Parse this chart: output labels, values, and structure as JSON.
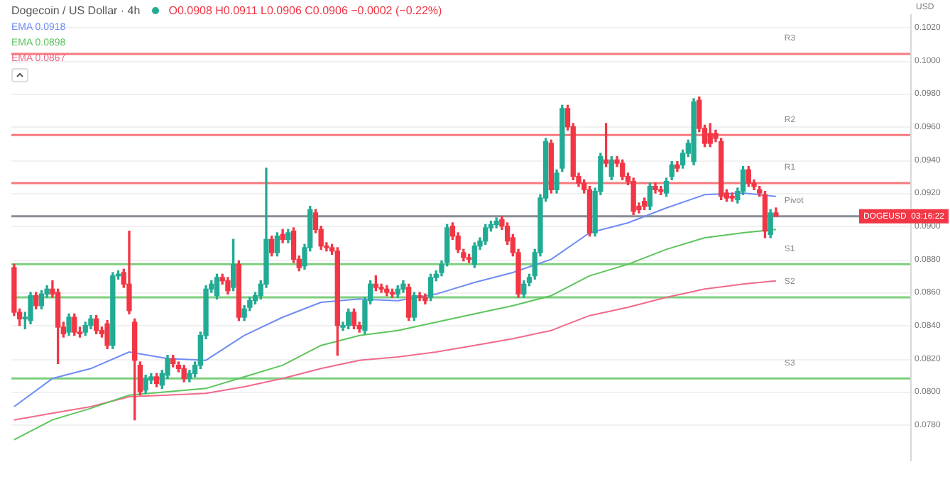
{
  "chart_data": {
    "type": "candlestick",
    "title": "Dogecoin / US Dollar · 4h",
    "subtitle": "O0.0908 H0.0911 L0.0906 C0.0906 −0.0002 (−0.22%)",
    "categories": [
      null,
      null,
      null,
      null,
      null,
      null,
      null,
      null,
      null,
      null,
      null,
      null,
      null,
      null,
      null,
      null,
      null,
      null,
      null,
      null,
      null,
      null,
      null,
      null,
      null,
      null,
      null,
      null,
      null,
      null,
      null,
      null,
      null,
      null,
      null,
      null,
      null,
      null,
      null,
      null,
      null,
      null,
      null,
      null,
      null,
      null,
      null,
      null,
      null,
      null,
      null,
      null,
      null,
      null,
      null,
      null,
      null,
      null,
      null,
      null,
      null,
      null,
      null,
      null,
      null,
      null,
      null,
      null,
      null,
      null,
      null,
      null,
      null,
      null,
      null,
      null,
      null,
      null,
      null,
      null,
      null,
      null,
      null,
      null,
      null,
      null,
      null,
      null,
      null,
      null,
      null,
      null,
      null,
      null,
      null,
      null,
      null,
      null,
      null,
      null,
      null,
      null,
      null,
      null,
      null,
      null,
      null,
      null,
      null,
      null,
      null,
      null,
      null,
      null,
      null,
      null,
      null,
      null,
      null,
      null,
      null,
      null,
      null,
      null,
      null,
      null,
      null,
      null,
      null,
      null,
      null,
      null,
      null,
      null,
      null,
      null,
      null,
      null,
      null,
      null,
      null,
      null,
      null,
      null,
      null,
      null,
      null,
      null,
      null,
      null,
      null,
      null,
      null,
      null,
      null,
      null,
      null,
      null,
      null,
      null,
      null,
      null,
      null,
      null
    ],
    "series": [
      {
        "type": "candlestick",
        "ohlc": [
          [
            0.0875,
            0.0877,
            0.0846,
            0.0848
          ],
          [
            0.0848,
            0.085,
            0.084,
            0.0844
          ],
          [
            0.0844,
            0.0848,
            0.0838,
            0.0845
          ],
          [
            0.0843,
            0.086,
            0.0841,
            0.0858
          ],
          [
            0.0858,
            0.086,
            0.085,
            0.0852
          ],
          [
            0.0852,
            0.0861,
            0.085,
            0.0859
          ],
          [
            0.0859,
            0.0864,
            0.0857,
            0.0862
          ],
          [
            0.0862,
            0.0867,
            0.0857,
            0.0859
          ],
          [
            0.086,
            0.0862,
            0.0817,
            0.0839
          ],
          [
            0.0839,
            0.0842,
            0.0833,
            0.0835
          ],
          [
            0.0836,
            0.0847,
            0.0834,
            0.0845
          ],
          [
            0.0845,
            0.0847,
            0.0834,
            0.0836
          ],
          [
            0.0836,
            0.0839,
            0.0833,
            0.0835
          ],
          [
            0.0836,
            0.0842,
            0.0834,
            0.084
          ],
          [
            0.084,
            0.0846,
            0.0838,
            0.0844
          ],
          [
            0.0844,
            0.0846,
            0.0835,
            0.0837
          ],
          [
            0.0837,
            0.0839,
            0.0833,
            0.0835
          ],
          [
            0.0841,
            0.0843,
            0.0826,
            0.0828
          ],
          [
            0.0828,
            0.0872,
            0.0826,
            0.087
          ],
          [
            0.087,
            0.0873,
            0.0868,
            0.0871
          ],
          [
            0.0872,
            0.0874,
            0.0863,
            0.0865
          ],
          [
            0.0865,
            0.0897,
            0.0847,
            0.0849
          ],
          [
            0.0842,
            0.0844,
            0.0783,
            0.0819
          ],
          [
            0.0816,
            0.0818,
            0.0798,
            0.08
          ],
          [
            0.0801,
            0.081,
            0.0799,
            0.0808
          ],
          [
            0.0807,
            0.0811,
            0.0805,
            0.0809
          ],
          [
            0.0809,
            0.0811,
            0.0803,
            0.0805
          ],
          [
            0.0804,
            0.0813,
            0.0802,
            0.0811
          ],
          [
            0.081,
            0.0822,
            0.0808,
            0.082
          ],
          [
            0.082,
            0.0822,
            0.0815,
            0.0817
          ],
          [
            0.0816,
            0.0818,
            0.0812,
            0.0814
          ],
          [
            0.0814,
            0.0816,
            0.0806,
            0.0808
          ],
          [
            0.0808,
            0.0813,
            0.0806,
            0.0811
          ],
          [
            0.0811,
            0.0818,
            0.0809,
            0.0816
          ],
          [
            0.0816,
            0.0836,
            0.0814,
            0.0834
          ],
          [
            0.0834,
            0.0864,
            0.0832,
            0.0862
          ],
          [
            0.0862,
            0.0867,
            0.086,
            0.0865
          ],
          [
            0.0858,
            0.0871,
            0.0856,
            0.0869
          ],
          [
            0.0869,
            0.0871,
            0.0865,
            0.0867
          ],
          [
            0.0867,
            0.0869,
            0.0859,
            0.0861
          ],
          [
            0.0863,
            0.0892,
            0.0861,
            0.0877
          ],
          [
            0.0877,
            0.0879,
            0.0843,
            0.0845
          ],
          [
            0.0845,
            0.0852,
            0.0843,
            0.085
          ],
          [
            0.0851,
            0.0857,
            0.0849,
            0.0855
          ],
          [
            0.0855,
            0.086,
            0.0853,
            0.0858
          ],
          [
            0.0858,
            0.0867,
            0.0856,
            0.0865
          ],
          [
            0.0865,
            0.0935,
            0.0863,
            0.0892
          ],
          [
            0.0892,
            0.0894,
            0.0882,
            0.0884
          ],
          [
            0.0884,
            0.0896,
            0.0882,
            0.0894
          ],
          [
            0.0895,
            0.0898,
            0.089,
            0.0892
          ],
          [
            0.0892,
            0.0898,
            0.089,
            0.0896
          ],
          [
            0.0897,
            0.0899,
            0.0878,
            0.088
          ],
          [
            0.088,
            0.0882,
            0.0873,
            0.0875
          ],
          [
            0.0876,
            0.0889,
            0.0874,
            0.0887
          ],
          [
            0.0887,
            0.0912,
            0.0885,
            0.091
          ],
          [
            0.0908,
            0.091,
            0.0896,
            0.0898
          ],
          [
            0.0898,
            0.09,
            0.0886,
            0.0888
          ],
          [
            0.0888,
            0.089,
            0.0885,
            0.0887
          ],
          [
            0.0887,
            0.0889,
            0.0883,
            0.0885
          ],
          [
            0.0885,
            0.0887,
            0.0822,
            0.084
          ],
          [
            0.0839,
            0.0842,
            0.0837,
            0.084
          ],
          [
            0.084,
            0.085,
            0.0838,
            0.0848
          ],
          [
            0.0848,
            0.085,
            0.0838,
            0.084
          ],
          [
            0.084,
            0.0842,
            0.0836,
            0.0838
          ],
          [
            0.0837,
            0.0857,
            0.0835,
            0.0855
          ],
          [
            0.0855,
            0.0867,
            0.0853,
            0.0865
          ],
          [
            0.0865,
            0.087,
            0.0861,
            0.0863
          ],
          [
            0.0863,
            0.0865,
            0.086,
            0.0862
          ],
          [
            0.0862,
            0.0864,
            0.0858,
            0.086
          ],
          [
            0.086,
            0.0862,
            0.0857,
            0.0859
          ],
          [
            0.0859,
            0.0864,
            0.0857,
            0.0862
          ],
          [
            0.0862,
            0.0867,
            0.086,
            0.0865
          ],
          [
            0.0863,
            0.0865,
            0.0843,
            0.0845
          ],
          [
            0.0845,
            0.086,
            0.0843,
            0.0858
          ],
          [
            0.0858,
            0.086,
            0.0855,
            0.0857
          ],
          [
            0.0857,
            0.0859,
            0.0853,
            0.0855
          ],
          [
            0.0857,
            0.0871,
            0.0855,
            0.0869
          ],
          [
            0.0869,
            0.0873,
            0.0867,
            0.0871
          ],
          [
            0.0872,
            0.0879,
            0.087,
            0.0877
          ],
          [
            0.0878,
            0.0901,
            0.0876,
            0.0899
          ],
          [
            0.09,
            0.0902,
            0.0892,
            0.0894
          ],
          [
            0.0894,
            0.0896,
            0.0884,
            0.0886
          ],
          [
            0.0884,
            0.0886,
            0.0879,
            0.0881
          ],
          [
            0.0881,
            0.0883,
            0.0878,
            0.088
          ],
          [
            0.0877,
            0.089,
            0.0875,
            0.0888
          ],
          [
            0.0888,
            0.0893,
            0.0886,
            0.0891
          ],
          [
            0.0891,
            0.0901,
            0.0889,
            0.0899
          ],
          [
            0.0899,
            0.0903,
            0.0897,
            0.0901
          ],
          [
            0.0901,
            0.0905,
            0.0899,
            0.0903
          ],
          [
            0.0904,
            0.0906,
            0.0898,
            0.09
          ],
          [
            0.09,
            0.0902,
            0.0889,
            0.0891
          ],
          [
            0.0893,
            0.0895,
            0.0882,
            0.0884
          ],
          [
            0.0884,
            0.0886,
            0.0857,
            0.0859
          ],
          [
            0.0859,
            0.0867,
            0.0857,
            0.0865
          ],
          [
            0.0866,
            0.0871,
            0.0864,
            0.0869
          ],
          [
            0.087,
            0.0886,
            0.0868,
            0.0884
          ],
          [
            0.0884,
            0.0919,
            0.0882,
            0.0917
          ],
          [
            0.0917,
            0.0953,
            0.0915,
            0.0951
          ],
          [
            0.095,
            0.0952,
            0.092,
            0.0922
          ],
          [
            0.0922,
            0.0934,
            0.092,
            0.0932
          ],
          [
            0.0935,
            0.0973,
            0.0933,
            0.0971
          ],
          [
            0.0971,
            0.0973,
            0.0958,
            0.096
          ],
          [
            0.096,
            0.0962,
            0.0928,
            0.093
          ],
          [
            0.093,
            0.0932,
            0.0924,
            0.0926
          ],
          [
            0.0926,
            0.0928,
            0.092,
            0.0922
          ],
          [
            0.0922,
            0.0924,
            0.0894,
            0.0896
          ],
          [
            0.0896,
            0.0923,
            0.0894,
            0.0921
          ],
          [
            0.0921,
            0.0944,
            0.0919,
            0.0942
          ],
          [
            0.094,
            0.0962,
            0.0936,
            0.0938
          ],
          [
            0.093,
            0.0942,
            0.0928,
            0.094
          ],
          [
            0.094,
            0.0942,
            0.0936,
            0.0938
          ],
          [
            0.0938,
            0.094,
            0.0928,
            0.093
          ],
          [
            0.093,
            0.0932,
            0.0925,
            0.0927
          ],
          [
            0.0927,
            0.0929,
            0.0907,
            0.0909
          ],
          [
            0.0912,
            0.0914,
            0.0908,
            0.091
          ],
          [
            0.0915,
            0.0917,
            0.091,
            0.0912
          ],
          [
            0.0912,
            0.0926,
            0.091,
            0.0924
          ],
          [
            0.0924,
            0.0926,
            0.092,
            0.0922
          ],
          [
            0.0922,
            0.0924,
            0.0919,
            0.0921
          ],
          [
            0.092,
            0.0929,
            0.0918,
            0.0927
          ],
          [
            0.093,
            0.0939,
            0.0928,
            0.0937
          ],
          [
            0.0937,
            0.0939,
            0.0933,
            0.0935
          ],
          [
            0.0937,
            0.0946,
            0.0935,
            0.0944
          ],
          [
            0.0944,
            0.0952,
            0.0942,
            0.095
          ],
          [
            0.0939,
            0.0977,
            0.0937,
            0.0975
          ],
          [
            0.0976,
            0.0978,
            0.0957,
            0.0959
          ],
          [
            0.0959,
            0.0961,
            0.0948,
            0.095
          ],
          [
            0.0956,
            0.0962,
            0.0948,
            0.095
          ],
          [
            0.0956,
            0.0958,
            0.0951,
            0.0953
          ],
          [
            0.0951,
            0.0953,
            0.0916,
            0.0918
          ],
          [
            0.092,
            0.0922,
            0.0915,
            0.0917
          ],
          [
            0.0918,
            0.092,
            0.0915,
            0.0917
          ],
          [
            0.0916,
            0.0923,
            0.0914,
            0.0921
          ],
          [
            0.0921,
            0.0936,
            0.0919,
            0.0934
          ],
          [
            0.0934,
            0.0936,
            0.0924,
            0.0926
          ],
          [
            0.0926,
            0.0928,
            0.0922,
            0.0924
          ],
          [
            0.0922,
            0.0924,
            0.0918,
            0.092
          ],
          [
            0.0919,
            0.0921,
            0.0893,
            0.0897
          ],
          [
            0.0895,
            0.091,
            0.0893,
            0.0908
          ],
          [
            0.0908,
            0.0911,
            0.0906,
            0.0906
          ],
          null,
          null,
          null,
          null,
          null,
          null,
          null,
          null,
          null,
          null,
          null,
          null,
          null,
          null,
          null,
          null,
          null,
          null,
          null,
          null,
          null,
          null,
          null,
          null
        ],
        "colors": [
          "#f23645",
          "#f23645",
          "#22ab94",
          "#22ab94",
          "#f23645",
          "#22ab94",
          "#22ab94",
          "#f23645",
          "#f23645",
          "#f23645",
          "#22ab94",
          "#f23645",
          "#f23645",
          "#22ab94",
          "#22ab94",
          "#f23645",
          "#f23645",
          "#f23645",
          "#22ab94",
          "#22ab94",
          "#f23645",
          "#f23645",
          "#f23645",
          "#f23645",
          "#22ab94",
          "#22ab94",
          "#f23645",
          "#22ab94",
          "#22ab94",
          "#f23645",
          "#f23645",
          "#f23645",
          "#22ab94",
          "#22ab94",
          "#22ab94",
          "#22ab94",
          "#22ab94",
          "#22ab94",
          "#f23645",
          "#f23645",
          "#22ab94",
          "#f23645",
          "#22ab94",
          "#22ab94",
          "#22ab94",
          "#22ab94",
          "#22ab94",
          "#f23645",
          "#22ab94",
          "#f23645",
          "#22ab94",
          "#f23645",
          "#f23645",
          "#22ab94",
          "#22ab94",
          "#f23645",
          "#f23645",
          "#f23645",
          "#f23645",
          "#f23645",
          "#22ab94",
          "#22ab94",
          "#f23645",
          "#f23645",
          "#22ab94",
          "#22ab94",
          "#f23645",
          "#f23645",
          "#f23645",
          "#f23645",
          "#22ab94",
          "#22ab94",
          "#f23645",
          "#22ab94",
          "#f23645",
          "#f23645",
          "#22ab94",
          "#22ab94",
          "#22ab94",
          "#22ab94",
          "#f23645",
          "#f23645",
          "#f23645",
          "#f23645",
          "#22ab94",
          "#22ab94",
          "#22ab94",
          "#22ab94",
          "#22ab94",
          "#f23645",
          "#f23645",
          "#f23645",
          "#f23645",
          "#22ab94",
          "#22ab94",
          "#22ab94",
          "#22ab94",
          "#22ab94",
          "#f23645",
          "#22ab94",
          "#22ab94",
          "#f23645",
          "#f23645",
          "#f23645",
          "#f23645",
          "#f23645",
          "#22ab94",
          "#22ab94",
          "#f23645",
          "#22ab94",
          "#f23645",
          "#f23645",
          "#f23645",
          "#f23645",
          "#f23645",
          "#f23645",
          "#22ab94",
          "#f23645",
          "#f23645",
          "#22ab94",
          "#22ab94",
          "#f23645",
          "#22ab94",
          "#22ab94",
          "#22ab94",
          "#f23645",
          "#f23645",
          "#f23645",
          "#f23645",
          "#f23645",
          "#f23645",
          "#f23645",
          "#22ab94",
          "#22ab94",
          "#f23645",
          "#f23645",
          "#f23645",
          "#f23645",
          "#22ab94",
          "#f23645",
          null,
          null,
          null,
          null,
          null,
          null,
          null,
          null,
          null,
          null,
          null,
          null,
          null,
          null,
          null,
          null,
          null,
          null,
          null,
          null,
          null,
          null,
          null,
          null
        ]
      },
      {
        "type": "line",
        "name": "EMA 0.0918",
        "color": "#6f8cf5",
        "values": [
          0.0791,
          null,
          null,
          null,
          null,
          null,
          null,
          0.0808,
          null,
          null,
          null,
          null,
          null,
          null,
          0.0814,
          null,
          null,
          null,
          null,
          null,
          null,
          0.0824,
          null,
          null,
          null,
          null,
          null,
          null,
          0.082,
          null,
          null,
          null,
          null,
          null,
          null,
          0.0819,
          null,
          null,
          null,
          null,
          null,
          null,
          0.0834,
          null,
          null,
          null,
          null,
          null,
          null,
          0.0845,
          null,
          null,
          null,
          null,
          null,
          null,
          0.0854,
          null,
          null,
          null,
          null,
          null,
          null,
          0.0856,
          null,
          null,
          null,
          null,
          null,
          null,
          0.0855,
          null,
          null,
          null,
          null,
          null,
          null,
          0.0859,
          null,
          null,
          null,
          null,
          null,
          null,
          0.0866,
          null,
          null,
          null,
          null,
          null,
          null,
          0.0872,
          null,
          null,
          null,
          null,
          null,
          null,
          0.088,
          null,
          null,
          null,
          null,
          null,
          null,
          0.0896,
          null,
          null,
          null,
          null,
          null,
          null,
          0.0902,
          null,
          null,
          null,
          null,
          null,
          null,
          0.0911,
          null,
          null,
          null,
          null,
          null,
          null,
          0.0919,
          null,
          null,
          null,
          null,
          null,
          null,
          0.092,
          null,
          null,
          null,
          null,
          null,
          0.0918,
          null,
          null,
          null,
          null,
          null,
          null,
          null,
          null,
          null,
          null,
          null,
          null,
          null,
          null,
          null,
          null,
          null,
          null,
          null,
          null,
          null,
          null,
          null,
          null
        ]
      },
      {
        "type": "line",
        "name": "EMA 0.0898",
        "color": "#5cc45c",
        "values": [
          0.0771,
          null,
          null,
          null,
          null,
          null,
          null,
          0.0783,
          null,
          null,
          null,
          null,
          null,
          null,
          0.079,
          null,
          null,
          null,
          null,
          null,
          null,
          0.0798,
          null,
          null,
          null,
          null,
          null,
          null,
          0.08,
          null,
          null,
          null,
          null,
          null,
          null,
          0.0802,
          null,
          null,
          null,
          null,
          null,
          null,
          0.0809,
          null,
          null,
          null,
          null,
          null,
          null,
          0.0816,
          null,
          null,
          null,
          null,
          null,
          null,
          0.0828,
          null,
          null,
          null,
          null,
          null,
          null,
          0.0834,
          null,
          null,
          null,
          null,
          null,
          null,
          0.0837,
          null,
          null,
          null,
          null,
          null,
          null,
          0.0842,
          null,
          null,
          null,
          null,
          null,
          null,
          0.0847,
          null,
          null,
          null,
          null,
          null,
          null,
          0.0852,
          null,
          null,
          null,
          null,
          null,
          null,
          0.0858,
          null,
          null,
          null,
          null,
          null,
          null,
          0.087,
          null,
          null,
          null,
          null,
          null,
          null,
          0.0877,
          null,
          null,
          null,
          null,
          null,
          null,
          0.0886,
          null,
          null,
          null,
          null,
          null,
          null,
          0.0893,
          null,
          null,
          null,
          null,
          null,
          null,
          0.0896,
          null,
          null,
          null,
          null,
          null,
          0.0898,
          null,
          null,
          null,
          null,
          null,
          null,
          null,
          null,
          null,
          null,
          null,
          null,
          null,
          null,
          null,
          null,
          null,
          null,
          null,
          null,
          null,
          null,
          null,
          null
        ]
      },
      {
        "type": "line",
        "name": "EMA 0.0867",
        "color": "#f06a8a",
        "values": [
          0.0783,
          null,
          null,
          null,
          null,
          null,
          null,
          0.0787,
          null,
          null,
          null,
          null,
          null,
          null,
          0.0791,
          null,
          null,
          null,
          null,
          null,
          null,
          0.0797,
          null,
          null,
          null,
          null,
          null,
          null,
          0.0798,
          null,
          null,
          null,
          null,
          null,
          null,
          0.0799,
          null,
          null,
          null,
          null,
          null,
          null,
          0.0803,
          null,
          null,
          null,
          null,
          null,
          null,
          0.0808,
          null,
          null,
          null,
          null,
          null,
          null,
          0.0814,
          null,
          null,
          null,
          null,
          null,
          null,
          0.0819,
          null,
          null,
          null,
          null,
          null,
          null,
          0.0821,
          null,
          null,
          null,
          null,
          null,
          null,
          0.0824,
          null,
          null,
          null,
          null,
          null,
          null,
          0.0828,
          null,
          null,
          null,
          null,
          null,
          null,
          0.0832,
          null,
          null,
          null,
          null,
          null,
          null,
          0.0837,
          null,
          null,
          null,
          null,
          null,
          null,
          0.0846,
          null,
          null,
          null,
          null,
          null,
          null,
          0.0851,
          null,
          null,
          null,
          null,
          null,
          null,
          0.0857,
          null,
          null,
          null,
          null,
          null,
          null,
          0.0862,
          null,
          null,
          null,
          null,
          null,
          null,
          0.0865,
          null,
          null,
          null,
          null,
          null,
          0.0867,
          null,
          null,
          null,
          null,
          null,
          null,
          null,
          null,
          null,
          null,
          null,
          null,
          null,
          null,
          null,
          null,
          null,
          null,
          null,
          null,
          null,
          null,
          null,
          null
        ]
      }
    ],
    "ylim": [
      0.0758,
      0.1028
    ],
    "yticks": [
      {
        "value": 0.078,
        "label": "0.0780"
      },
      {
        "value": 0.08,
        "label": "0.0800"
      },
      {
        "value": 0.082,
        "label": "0.0820"
      },
      {
        "value": 0.084,
        "label": "0.0840"
      },
      {
        "value": 0.086,
        "label": "0.0860"
      },
      {
        "value": 0.088,
        "label": "0.0880"
      },
      {
        "value": 0.09,
        "label": "0.0900"
      },
      {
        "value": 0.092,
        "label": "0.0920"
      },
      {
        "value": 0.094,
        "label": "0.0940"
      },
      {
        "value": 0.096,
        "label": "0.0960"
      },
      {
        "value": 0.098,
        "label": "0.0980"
      },
      {
        "value": 0.1,
        "label": "0.1000"
      },
      {
        "value": 0.102,
        "label": "0.1020"
      }
    ],
    "ref_lines": [
      {
        "axis": "y",
        "value": 0.1004,
        "label": "R3",
        "color": "#f7797d"
      },
      {
        "axis": "y",
        "value": 0.0955,
        "label": "R2",
        "color": "#f7797d"
      },
      {
        "axis": "y",
        "value": 0.0926,
        "label": "R1",
        "color": "#f7797d"
      },
      {
        "axis": "y",
        "value": 0.0906,
        "label": "Pivot",
        "color": "#8a8d96"
      },
      {
        "axis": "y",
        "value": 0.0877,
        "label": "S1",
        "color": "#7ccf7c"
      },
      {
        "axis": "y",
        "value": 0.0857,
        "label": "S2",
        "color": "#7ccf7c"
      },
      {
        "axis": "y",
        "value": 0.0808,
        "label": "S3",
        "color": "#7ccf7c"
      }
    ],
    "annotations": [
      "USD",
      {
        "text": "DOGEUSD  03:16:22",
        "y": 0.0906
      }
    ],
    "grid": "y",
    "legend": "top left",
    "tick_labels": "y"
  }
}
